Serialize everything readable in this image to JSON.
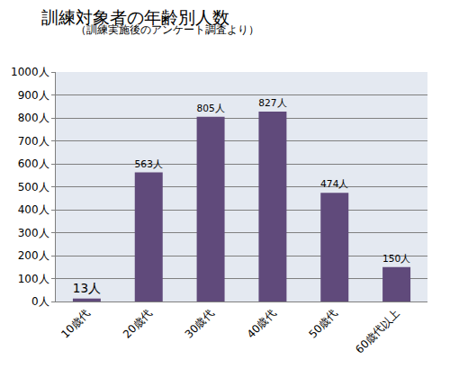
{
  "chart_data": {
    "type": "bar",
    "title": "訓練対象者の年齢別人数",
    "subtitle": "（訓練実施後のアンケート調査より）",
    "categories": [
      "10歳代",
      "20歳代",
      "30歳代",
      "40歳代",
      "50歳代",
      "60歳代以上"
    ],
    "values": [
      13,
      563,
      805,
      827,
      474,
      150
    ],
    "value_labels": [
      "13人",
      "563人",
      "805人",
      "827人",
      "474人",
      "150人"
    ],
    "data_labels": true,
    "color": "#604a7b",
    "ylim": [
      0,
      1000
    ],
    "yticks": [
      {
        "value": 0,
        "label": "0人"
      },
      {
        "value": 100,
        "label": "100人"
      },
      {
        "value": 200,
        "label": "200人"
      },
      {
        "value": 300,
        "label": "300人"
      },
      {
        "value": 400,
        "label": "400人"
      },
      {
        "value": 500,
        "label": "500人"
      },
      {
        "value": 600,
        "label": "600人"
      },
      {
        "value": 700,
        "label": "700人"
      },
      {
        "value": 800,
        "label": "800人"
      },
      {
        "value": 900,
        "label": "900人"
      },
      {
        "value": 1000,
        "label": "1000人"
      }
    ],
    "grid": true
  }
}
